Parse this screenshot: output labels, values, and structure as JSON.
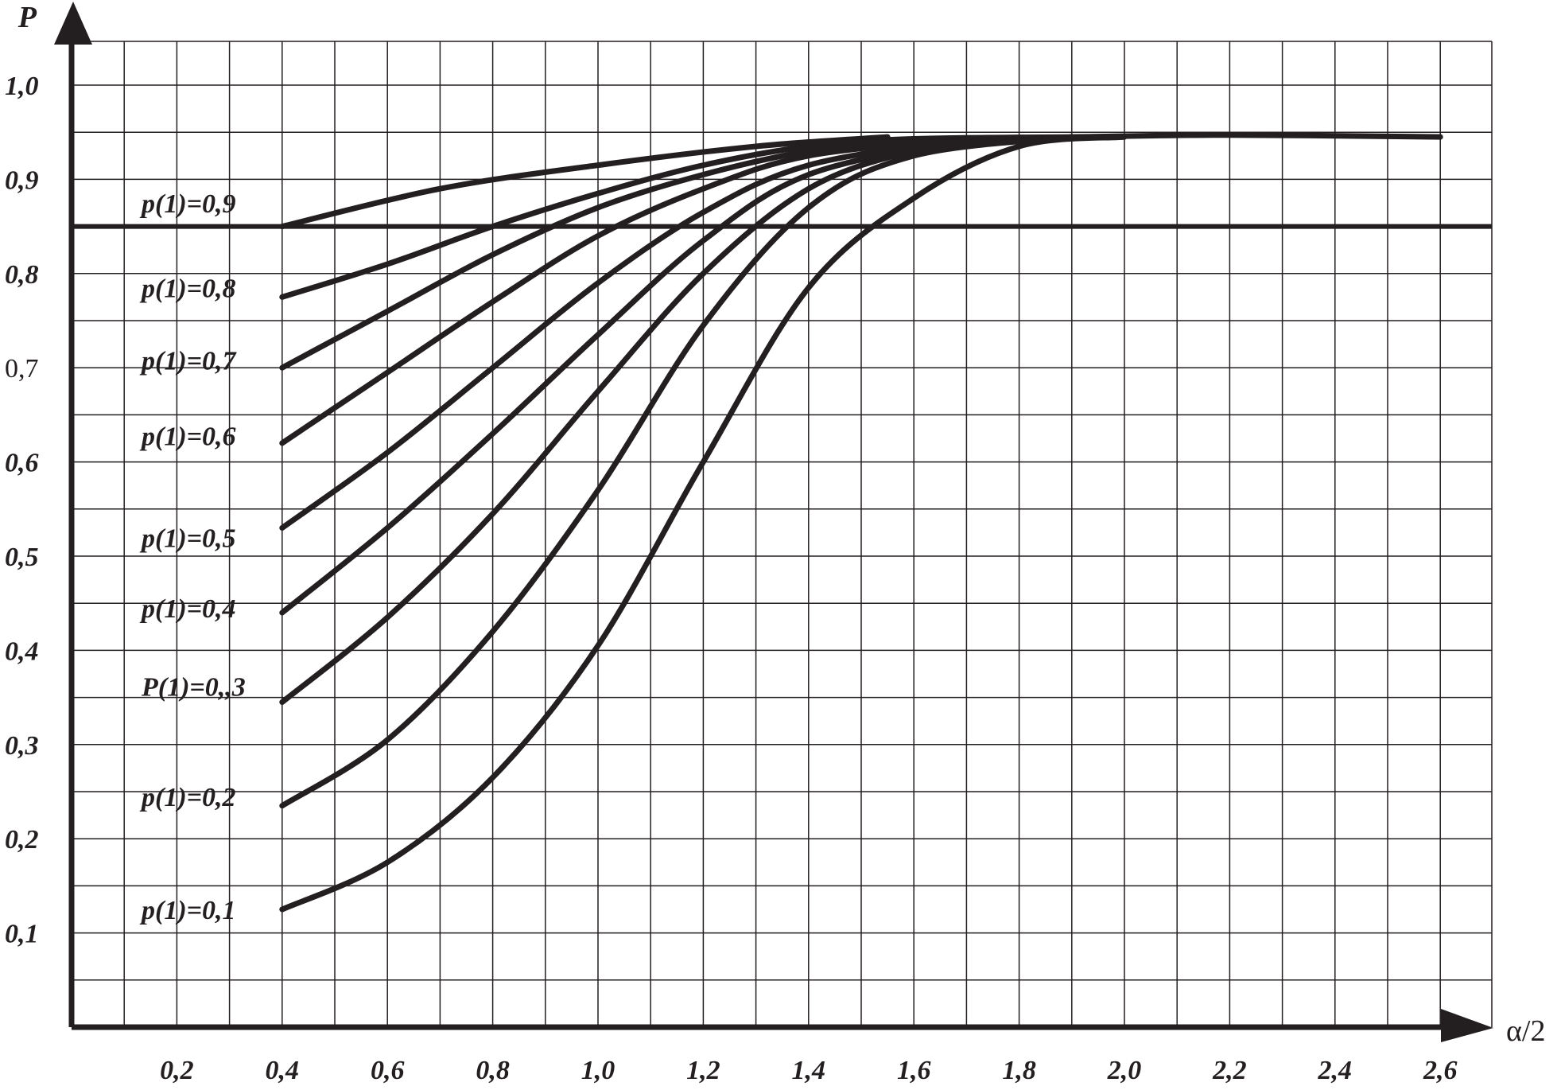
{
  "chart_data": {
    "type": "line",
    "title": "",
    "xlabel": "α/2",
    "ylabel": "P",
    "xlim": [
      0,
      2.7
    ],
    "ylim": [
      0,
      1.04
    ],
    "grid": true,
    "x_ticks": [
      "0,2",
      "0,4",
      "0,6",
      "0,8",
      "1,0",
      "1,2",
      "1,4",
      "1,6",
      "1,8",
      "2,0",
      "2,2",
      "2,4",
      "2,6"
    ],
    "y_ticks": [
      "0,1",
      "0,2",
      "0,3",
      "0,4",
      "0,5",
      "0,6",
      "0,7",
      "0,8",
      "0,9",
      "1,0"
    ],
    "reference_line": {
      "y": 0.85
    },
    "series": [
      {
        "name": "p(1)=0,9",
        "label_y": 0.875,
        "x": [
          0.4,
          0.7,
          1.0,
          1.3,
          1.55
        ],
        "y": [
          0.85,
          0.89,
          0.915,
          0.935,
          0.945
        ]
      },
      {
        "name": "p(1)=0,8",
        "label_y": 0.785,
        "x": [
          0.4,
          0.6,
          0.8,
          1.0,
          1.2,
          1.4,
          1.6,
          1.9,
          2.2,
          2.6
        ],
        "y": [
          0.775,
          0.81,
          0.85,
          0.885,
          0.915,
          0.935,
          0.943,
          0.945,
          0.947,
          0.945
        ]
      },
      {
        "name": "p(1)=0,7",
        "label_y": 0.708,
        "x": [
          0.4,
          0.6,
          0.8,
          1.0,
          1.2,
          1.4,
          1.6
        ],
        "y": [
          0.7,
          0.76,
          0.82,
          0.87,
          0.905,
          0.93,
          0.943
        ]
      },
      {
        "name": "p(1)=0,6",
        "label_y": 0.628,
        "x": [
          0.4,
          0.6,
          0.8,
          1.0,
          1.2,
          1.4,
          1.7
        ],
        "y": [
          0.62,
          0.695,
          0.77,
          0.84,
          0.89,
          0.925,
          0.943
        ]
      },
      {
        "name": "p(1)=0,5",
        "label_y": 0.52,
        "x": [
          0.4,
          0.6,
          0.8,
          1.0,
          1.2,
          1.4,
          1.7
        ],
        "y": [
          0.53,
          0.61,
          0.7,
          0.79,
          0.865,
          0.915,
          0.943
        ]
      },
      {
        "name": "p(1)=0,4",
        "label_y": 0.445,
        "x": [
          0.4,
          0.6,
          0.8,
          1.0,
          1.2,
          1.4,
          1.7
        ],
        "y": [
          0.44,
          0.53,
          0.63,
          0.735,
          0.835,
          0.905,
          0.943
        ]
      },
      {
        "name": "P(1)=0,,3",
        "label_y": 0.362,
        "x": [
          0.4,
          0.6,
          0.8,
          1.0,
          1.2,
          1.4,
          1.6,
          1.8
        ],
        "y": [
          0.345,
          0.435,
          0.545,
          0.675,
          0.8,
          0.89,
          0.93,
          0.943
        ]
      },
      {
        "name": "p(1)=0,2",
        "label_y": 0.245,
        "x": [
          0.4,
          0.6,
          0.8,
          1.0,
          1.2,
          1.4,
          1.6,
          1.9
        ],
        "y": [
          0.235,
          0.305,
          0.42,
          0.57,
          0.745,
          0.87,
          0.925,
          0.945
        ]
      },
      {
        "name": "p(1)=0,1",
        "label_y": 0.125,
        "x": [
          0.4,
          0.6,
          0.8,
          1.0,
          1.2,
          1.4,
          1.6,
          1.8,
          2.0
        ],
        "y": [
          0.125,
          0.175,
          0.265,
          0.405,
          0.6,
          0.785,
          0.88,
          0.935,
          0.945
        ]
      }
    ]
  }
}
